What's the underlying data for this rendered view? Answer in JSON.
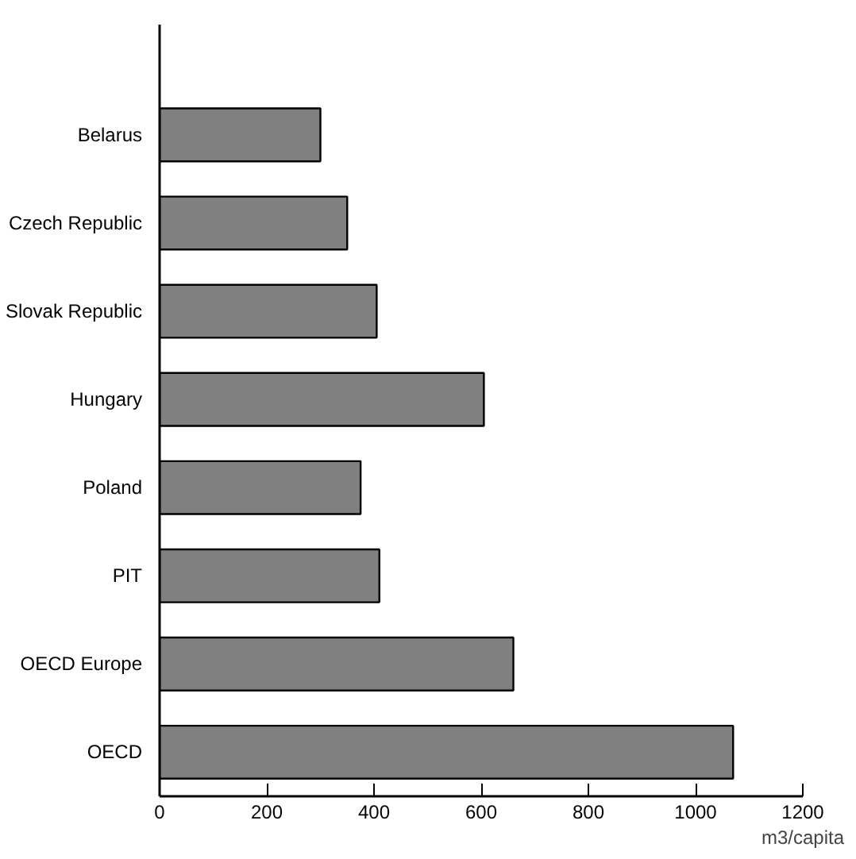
{
  "chart_data": {
    "type": "bar",
    "orientation": "horizontal",
    "categories": [
      "Belarus",
      "Czech Republic",
      "Slovak Republic",
      "Hungary",
      "Poland",
      "PIT",
      "OECD Europe",
      "OECD"
    ],
    "values": [
      300,
      350,
      405,
      605,
      375,
      410,
      660,
      1070
    ],
    "color": "#808080",
    "xlim": [
      0,
      1200
    ],
    "xticks": [
      0,
      200,
      400,
      600,
      800,
      1000,
      1200
    ],
    "xlabel": "m3/capita",
    "grid": false
  }
}
